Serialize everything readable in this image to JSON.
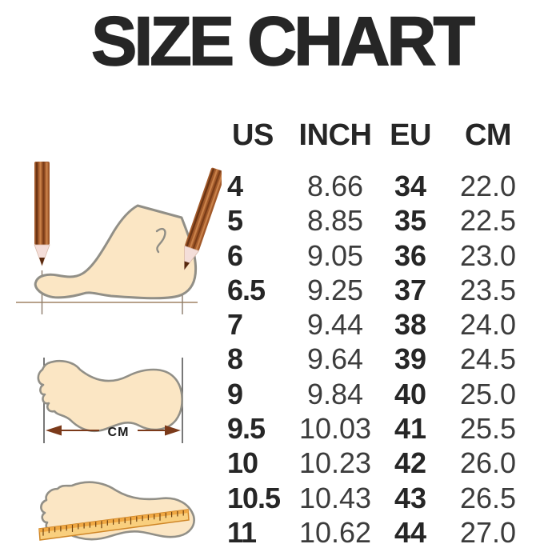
{
  "title": "SIZE CHART",
  "table": {
    "headers": [
      "US",
      "INCH",
      "EU",
      "CM"
    ],
    "rows": [
      [
        "4",
        "8.66",
        "34",
        "22.0"
      ],
      [
        "5",
        "8.85",
        "35",
        "22.5"
      ],
      [
        "6",
        "9.05",
        "36",
        "23.0"
      ],
      [
        "6.5",
        "9.25",
        "37",
        "23.5"
      ],
      [
        "7",
        "9.44",
        "38",
        "24.0"
      ],
      [
        "8",
        "9.64",
        "39",
        "24.5"
      ],
      [
        "9",
        "9.84",
        "40",
        "25.0"
      ],
      [
        "9.5",
        "10.03",
        "41",
        "25.5"
      ],
      [
        "10",
        "10.23",
        "42",
        "26.0"
      ],
      [
        "10.5",
        "10.43",
        "43",
        "26.5"
      ],
      [
        "11",
        "10.62",
        "44",
        "27.0"
      ]
    ]
  },
  "illustrations": {
    "foot_measure": "side view of foot measured between two pencils",
    "foot_length": "footprint with length arrow",
    "foot_ruler": "footprint with ruler laid across",
    "length_label": "CM"
  },
  "colors": {
    "text_dark": "#262626",
    "text_regular": "#3c3c3c",
    "foot_fill": "#fbe6c4",
    "foot_outline": "#918f87",
    "pencil_brown": "#a25a2b",
    "pencil_dark": "#6b3413",
    "pencil_tip": "#f4ded9",
    "lead_dark": "#58290d",
    "arrow_brown": "#7b3a1a",
    "ruler_fill": "#f9cf7e",
    "ruler_edge": "#cf8627",
    "background": "#ffffff"
  }
}
